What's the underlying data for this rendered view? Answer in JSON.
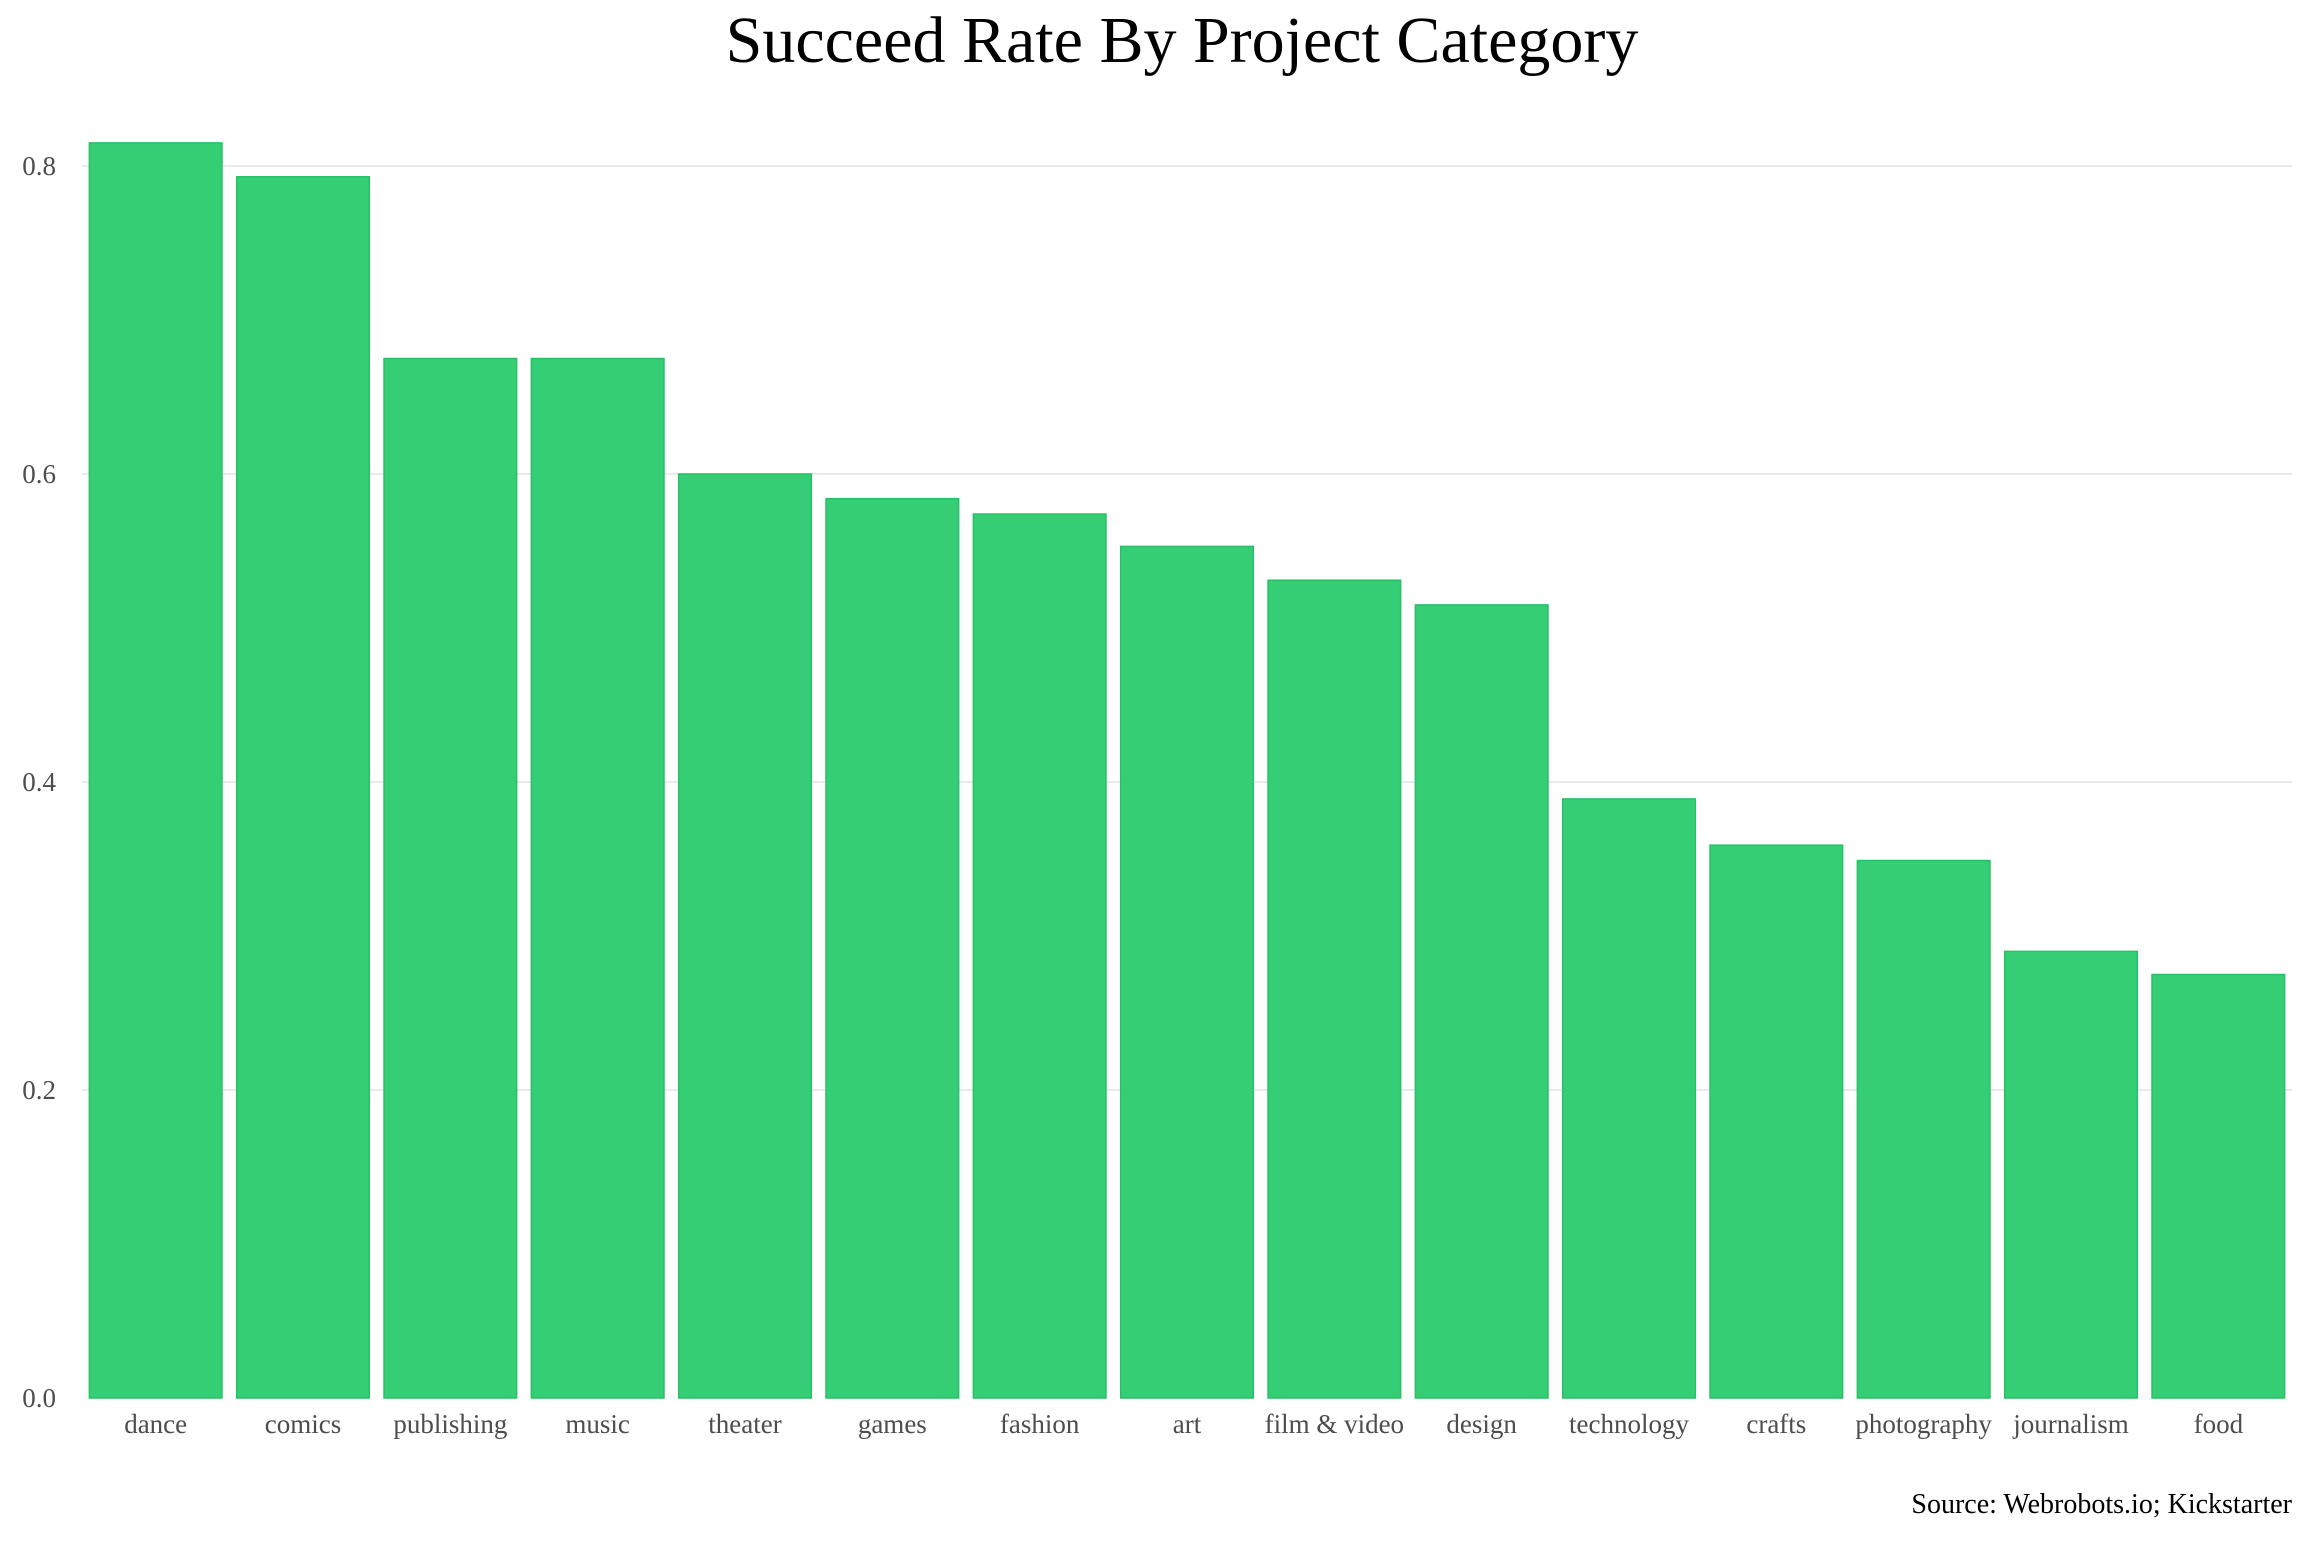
{
  "chart_data": {
    "type": "bar",
    "title": "Succeed Rate By Project Category",
    "caption": "Source: Webrobots.io; Kickstarter",
    "xlabel": "",
    "ylabel": "",
    "categories": [
      "dance",
      "comics",
      "publishing",
      "music",
      "theater",
      "games",
      "fashion",
      "art",
      "film & video",
      "design",
      "technology",
      "crafts",
      "photography",
      "journalism",
      "food"
    ],
    "values": [
      0.815,
      0.793,
      0.675,
      0.675,
      0.6,
      0.584,
      0.574,
      0.553,
      0.531,
      0.515,
      0.389,
      0.359,
      0.349,
      0.29,
      0.275
    ],
    "ylim": [
      0,
      0.82
    ],
    "yticks": [
      0.0,
      0.2,
      0.4,
      0.6,
      0.8
    ],
    "ytick_labels": [
      "0.0",
      "0.2",
      "0.4",
      "0.6",
      "0.8"
    ],
    "grid": true,
    "legend": "none",
    "bar_color": "#2ecc71"
  }
}
